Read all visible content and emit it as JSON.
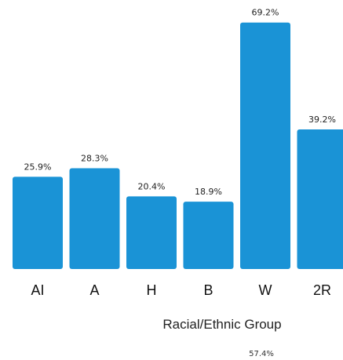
{
  "chart_data": {
    "type": "bar",
    "categories": [
      "AI",
      "A",
      "H",
      "B",
      "W",
      "2R"
    ],
    "values": [
      25.9,
      28.3,
      20.4,
      18.9,
      69.2,
      39.2
    ],
    "value_labels": [
      "25.9%",
      "28.3%",
      "20.4%",
      "18.9%",
      "69.2%",
      "39.2%"
    ],
    "xlabel": "Racial/Ethnic Group",
    "ylabel": "",
    "ylim": [
      0,
      72
    ],
    "grid": false,
    "bar_color": "#1a93d6",
    "footnote": "57.4%"
  }
}
